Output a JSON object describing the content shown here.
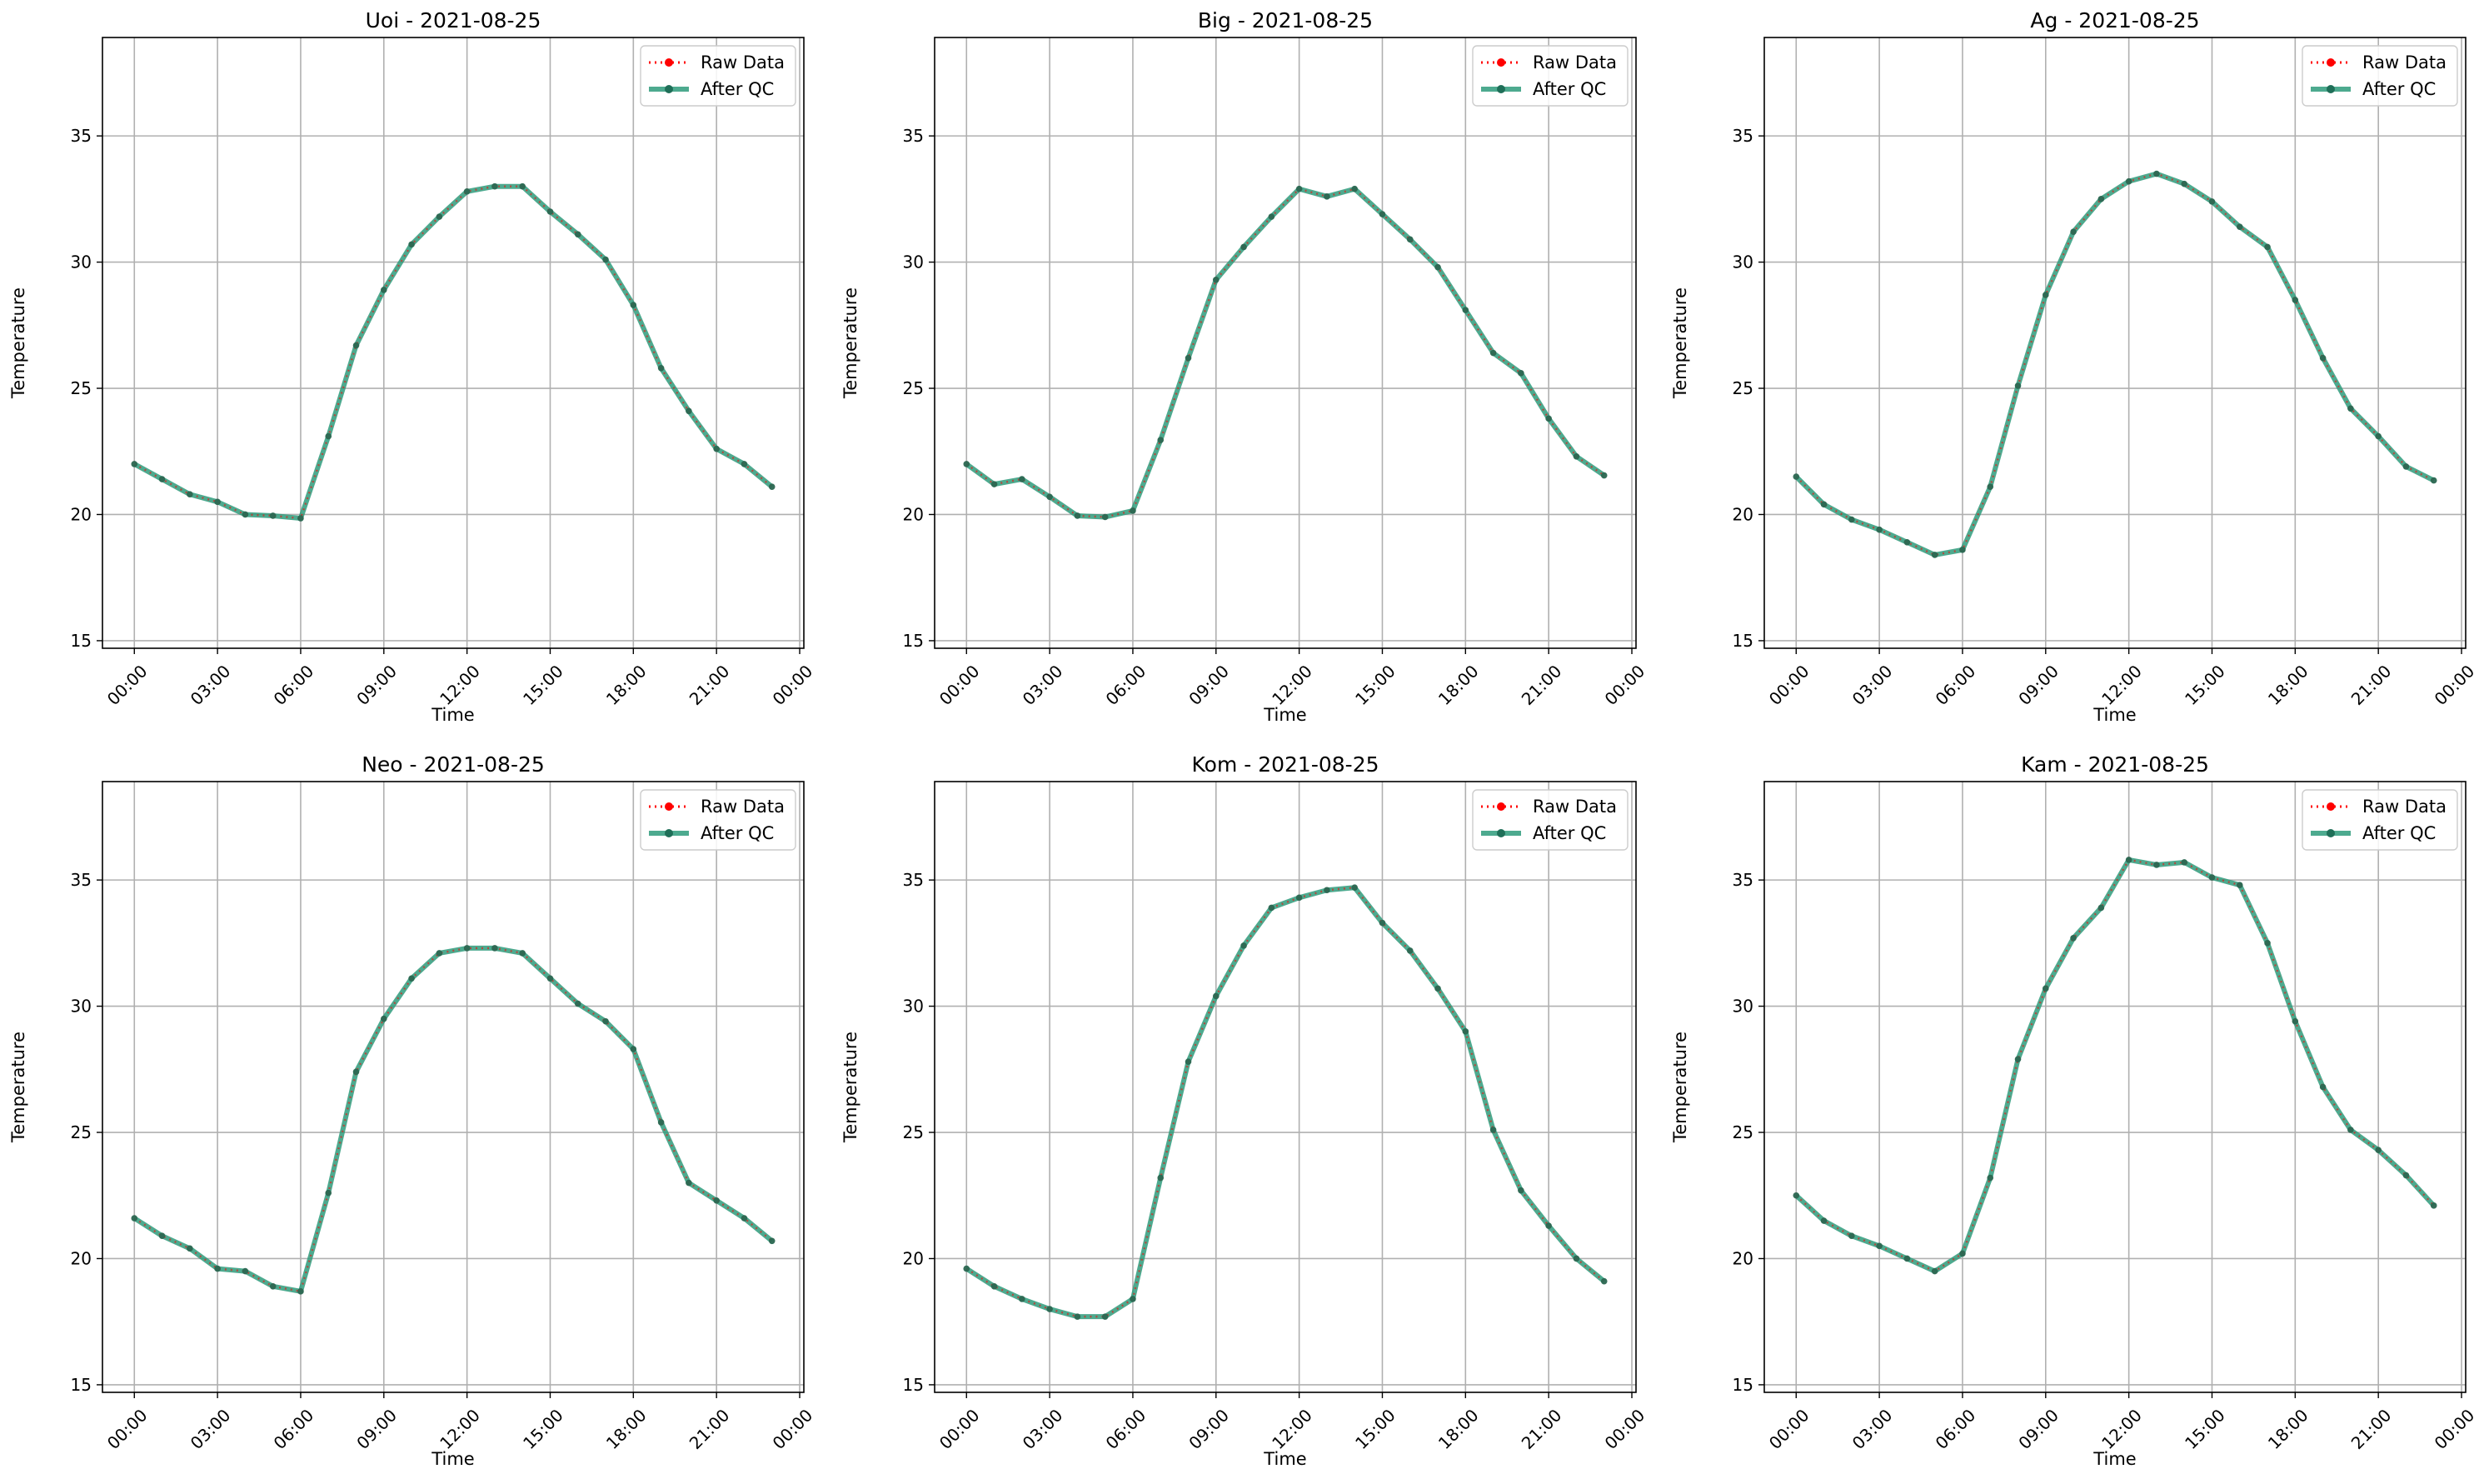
{
  "legend": {
    "placement": "top-right",
    "entries": [
      {
        "label": "Raw Data",
        "color": "#ff0000",
        "style": "dotted",
        "marker": "circle"
      },
      {
        "label": "After QC",
        "color": "#2e9b7b",
        "style": "solid",
        "marker": "circle"
      }
    ]
  },
  "colors": {
    "raw": "#ff0000",
    "qc_line": "#2e9b7b",
    "qc_marker": "#1f6f58",
    "grid": "#b0b0b0"
  },
  "chart_data": [
    {
      "type": "line",
      "title": "Uoi - 2021-08-25",
      "xlabel": "Time",
      "ylabel": "Temperature",
      "ylim": [
        14.7,
        38.9
      ],
      "xlim": [
        "2021-08-24T22:51",
        "2021-08-26T00:09"
      ],
      "grid": true,
      "yticks": [
        15,
        20,
        25,
        30,
        35
      ],
      "xticks": [
        "00:00",
        "03:00",
        "06:00",
        "09:00",
        "12:00",
        "15:00",
        "18:00",
        "21:00",
        "00:00"
      ],
      "x_hours": [
        0,
        1,
        2,
        3,
        4,
        5,
        6,
        7,
        8,
        9,
        10,
        11,
        12,
        13,
        14,
        15,
        16,
        17,
        18,
        19,
        20,
        21,
        22,
        23
      ],
      "series": [
        {
          "name": "Raw Data",
          "values": [
            22.0,
            21.4,
            20.8,
            20.5,
            20.0,
            19.95,
            19.85,
            23.1,
            26.7,
            28.9,
            30.7,
            31.8,
            32.8,
            33.0,
            33.0,
            32.0,
            31.1,
            30.1,
            28.3,
            25.8,
            24.1,
            22.6,
            22.0,
            21.1
          ]
        },
        {
          "name": "After QC",
          "values": [
            22.0,
            21.4,
            20.8,
            20.5,
            20.0,
            19.95,
            19.85,
            23.1,
            26.7,
            28.9,
            30.7,
            31.8,
            32.8,
            33.0,
            33.0,
            32.0,
            31.1,
            30.1,
            28.3,
            25.8,
            24.1,
            22.6,
            22.0,
            21.1
          ]
        }
      ]
    },
    {
      "type": "line",
      "title": "Big - 2021-08-25",
      "xlabel": "Time",
      "ylabel": "Temperature",
      "ylim": [
        14.7,
        38.9
      ],
      "xlim": [
        "2021-08-24T22:51",
        "2021-08-26T00:09"
      ],
      "grid": true,
      "yticks": [
        15,
        20,
        25,
        30,
        35
      ],
      "xticks": [
        "00:00",
        "03:00",
        "06:00",
        "09:00",
        "12:00",
        "15:00",
        "18:00",
        "21:00",
        "00:00"
      ],
      "x_hours": [
        0,
        1,
        2,
        3,
        4,
        5,
        6,
        7,
        8,
        9,
        10,
        11,
        12,
        13,
        14,
        15,
        16,
        17,
        18,
        19,
        20,
        21,
        22,
        23
      ],
      "series": [
        {
          "name": "Raw Data",
          "values": [
            22.0,
            21.2,
            21.4,
            20.7,
            19.95,
            19.9,
            20.15,
            22.95,
            26.2,
            29.3,
            30.6,
            31.8,
            32.9,
            32.6,
            32.9,
            31.9,
            30.9,
            29.8,
            28.1,
            26.4,
            25.6,
            23.8,
            22.3,
            21.55
          ]
        },
        {
          "name": "After QC",
          "values": [
            22.0,
            21.2,
            21.4,
            20.7,
            19.95,
            19.9,
            20.15,
            22.95,
            26.2,
            29.3,
            30.6,
            31.8,
            32.9,
            32.6,
            32.9,
            31.9,
            30.9,
            29.8,
            28.1,
            26.4,
            25.6,
            23.8,
            22.3,
            21.55
          ]
        }
      ]
    },
    {
      "type": "line",
      "title": "Ag - 2021-08-25",
      "xlabel": "Time",
      "ylabel": "Temperature",
      "ylim": [
        14.7,
        38.9
      ],
      "xlim": [
        "2021-08-24T22:51",
        "2021-08-26T00:09"
      ],
      "grid": true,
      "yticks": [
        15,
        20,
        25,
        30,
        35
      ],
      "xticks": [
        "00:00",
        "03:00",
        "06:00",
        "09:00",
        "12:00",
        "15:00",
        "18:00",
        "21:00",
        "00:00"
      ],
      "x_hours": [
        0,
        1,
        2,
        3,
        4,
        5,
        6,
        7,
        8,
        9,
        10,
        11,
        12,
        13,
        14,
        15,
        16,
        17,
        18,
        19,
        20,
        21,
        22,
        23
      ],
      "series": [
        {
          "name": "Raw Data",
          "values": [
            21.5,
            20.4,
            19.8,
            19.4,
            18.9,
            18.4,
            18.6,
            21.1,
            25.1,
            28.7,
            31.2,
            32.5,
            33.2,
            33.5,
            33.1,
            32.4,
            31.4,
            30.6,
            28.5,
            26.2,
            24.2,
            23.1,
            21.9,
            21.35
          ]
        },
        {
          "name": "After QC",
          "values": [
            21.5,
            20.4,
            19.8,
            19.4,
            18.9,
            18.4,
            18.6,
            21.1,
            25.1,
            28.7,
            31.2,
            32.5,
            33.2,
            33.5,
            33.1,
            32.4,
            31.4,
            30.6,
            28.5,
            26.2,
            24.2,
            23.1,
            21.9,
            21.35
          ]
        }
      ]
    },
    {
      "type": "line",
      "title": "Neo - 2021-08-25",
      "xlabel": "Time",
      "ylabel": "Temperature",
      "ylim": [
        14.7,
        38.9
      ],
      "xlim": [
        "2021-08-24T22:51",
        "2021-08-26T00:09"
      ],
      "grid": true,
      "yticks": [
        15,
        20,
        25,
        30,
        35
      ],
      "xticks": [
        "00:00",
        "03:00",
        "06:00",
        "09:00",
        "12:00",
        "15:00",
        "18:00",
        "21:00",
        "00:00"
      ],
      "x_hours": [
        0,
        1,
        2,
        3,
        4,
        5,
        6,
        7,
        8,
        9,
        10,
        11,
        12,
        13,
        14,
        15,
        16,
        17,
        18,
        19,
        20,
        21,
        22,
        23
      ],
      "series": [
        {
          "name": "Raw Data",
          "values": [
            21.6,
            20.9,
            20.4,
            19.6,
            19.5,
            18.9,
            18.7,
            22.6,
            27.4,
            29.5,
            31.1,
            32.1,
            32.3,
            32.3,
            32.1,
            31.1,
            30.1,
            29.4,
            28.3,
            25.4,
            23.0,
            22.3,
            21.6,
            20.7
          ]
        },
        {
          "name": "After QC",
          "values": [
            21.6,
            20.9,
            20.4,
            19.6,
            19.5,
            18.9,
            18.7,
            22.6,
            27.4,
            29.5,
            31.1,
            32.1,
            32.3,
            32.3,
            32.1,
            31.1,
            30.1,
            29.4,
            28.3,
            25.4,
            23.0,
            22.3,
            21.6,
            20.7
          ]
        }
      ]
    },
    {
      "type": "line",
      "title": "Kom - 2021-08-25",
      "xlabel": "Time",
      "ylabel": "Temperature",
      "ylim": [
        14.7,
        38.9
      ],
      "xlim": [
        "2021-08-24T22:51",
        "2021-08-26T00:09"
      ],
      "grid": true,
      "yticks": [
        15,
        20,
        25,
        30,
        35
      ],
      "xticks": [
        "00:00",
        "03:00",
        "06:00",
        "09:00",
        "12:00",
        "15:00",
        "18:00",
        "21:00",
        "00:00"
      ],
      "x_hours": [
        0,
        1,
        2,
        3,
        4,
        5,
        6,
        7,
        8,
        9,
        10,
        11,
        12,
        13,
        14,
        15,
        16,
        17,
        18,
        19,
        20,
        21,
        22,
        23
      ],
      "series": [
        {
          "name": "Raw Data",
          "values": [
            19.6,
            18.9,
            18.4,
            18.0,
            17.7,
            17.7,
            18.4,
            23.2,
            27.8,
            30.4,
            32.4,
            33.9,
            34.3,
            34.6,
            34.7,
            33.3,
            32.2,
            30.7,
            29.0,
            25.1,
            22.7,
            21.3,
            20.0,
            19.1
          ]
        },
        {
          "name": "After QC",
          "values": [
            19.6,
            18.9,
            18.4,
            18.0,
            17.7,
            17.7,
            18.4,
            23.2,
            27.8,
            30.4,
            32.4,
            33.9,
            34.3,
            34.6,
            34.7,
            33.3,
            32.2,
            30.7,
            29.0,
            25.1,
            22.7,
            21.3,
            20.0,
            19.1
          ]
        }
      ]
    },
    {
      "type": "line",
      "title": "Kam - 2021-08-25",
      "xlabel": "Time",
      "ylabel": "Temperature",
      "ylim": [
        14.7,
        38.9
      ],
      "xlim": [
        "2021-08-24T22:51",
        "2021-08-26T00:09"
      ],
      "grid": true,
      "yticks": [
        15,
        20,
        25,
        30,
        35
      ],
      "xticks": [
        "00:00",
        "03:00",
        "06:00",
        "09:00",
        "12:00",
        "15:00",
        "18:00",
        "21:00",
        "00:00"
      ],
      "x_hours": [
        0,
        1,
        2,
        3,
        4,
        5,
        6,
        7,
        8,
        9,
        10,
        11,
        12,
        13,
        14,
        15,
        16,
        17,
        18,
        19,
        20,
        21,
        22,
        23
      ],
      "series": [
        {
          "name": "Raw Data",
          "values": [
            22.5,
            21.5,
            20.9,
            20.5,
            20.0,
            19.5,
            20.2,
            23.2,
            27.9,
            30.7,
            32.7,
            33.9,
            35.8,
            35.6,
            35.7,
            35.1,
            34.8,
            32.5,
            29.4,
            26.8,
            25.1,
            24.3,
            23.3,
            22.1
          ]
        },
        {
          "name": "After QC",
          "values": [
            22.5,
            21.5,
            20.9,
            20.5,
            20.0,
            19.5,
            20.2,
            23.2,
            27.9,
            30.7,
            32.7,
            33.9,
            35.8,
            35.6,
            35.7,
            35.1,
            34.8,
            32.5,
            29.4,
            26.8,
            25.1,
            24.3,
            23.3,
            22.1
          ]
        }
      ]
    }
  ]
}
